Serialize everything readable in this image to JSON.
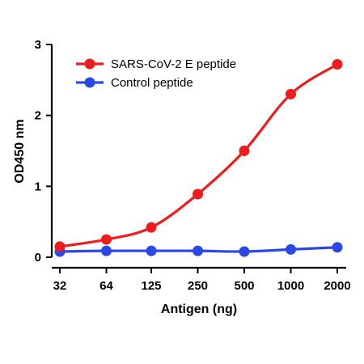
{
  "chart_data": {
    "type": "line",
    "title": "",
    "xlabel": "Antigen (ng)",
    "ylabel": "OD450 nm",
    "x_scale": "log2",
    "categories": [
      "32",
      "64",
      "125",
      "250",
      "500",
      "1000",
      "2000"
    ],
    "x": [
      32,
      64,
      125,
      250,
      500,
      1000,
      2000
    ],
    "ylim": [
      0,
      3
    ],
    "y_ticks": [
      "0",
      "1",
      "2",
      "3"
    ],
    "grid": false,
    "legend_position": "top-left",
    "series": [
      {
        "name": "SARS-CoV-2 E peptide",
        "color": "#ee1c1c",
        "values": [
          0.15,
          0.25,
          0.42,
          0.89,
          1.5,
          2.3,
          2.72
        ]
      },
      {
        "name": "Control peptide",
        "color": "#2a48e8",
        "values": [
          0.08,
          0.09,
          0.09,
          0.09,
          0.08,
          0.11,
          0.14
        ]
      }
    ]
  }
}
